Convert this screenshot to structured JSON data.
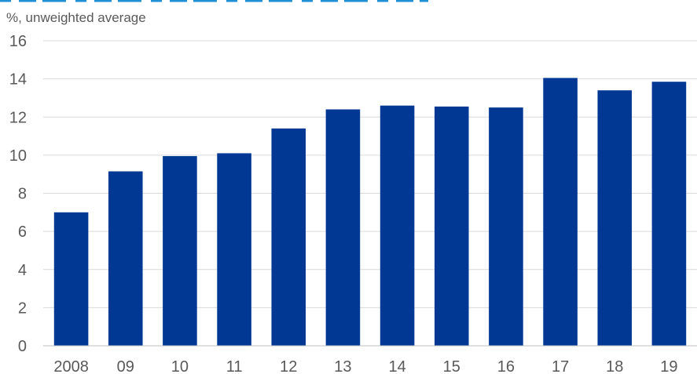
{
  "chart_data": {
    "type": "bar",
    "subtitle": "%, unweighted  average",
    "categories": [
      "2008",
      "09",
      "10",
      "11",
      "12",
      "13",
      "14",
      "15",
      "16",
      "17",
      "18",
      "19"
    ],
    "values": [
      7.0,
      9.15,
      9.95,
      10.1,
      11.4,
      12.4,
      12.6,
      12.55,
      12.5,
      14.05,
      13.4,
      13.85
    ],
    "ylim": [
      0,
      16
    ],
    "yticks": [
      0,
      2,
      4,
      6,
      8,
      10,
      12,
      14,
      16
    ],
    "grid": true,
    "bar_color": "#003893",
    "title_rule_color": "#1f8fd6"
  }
}
